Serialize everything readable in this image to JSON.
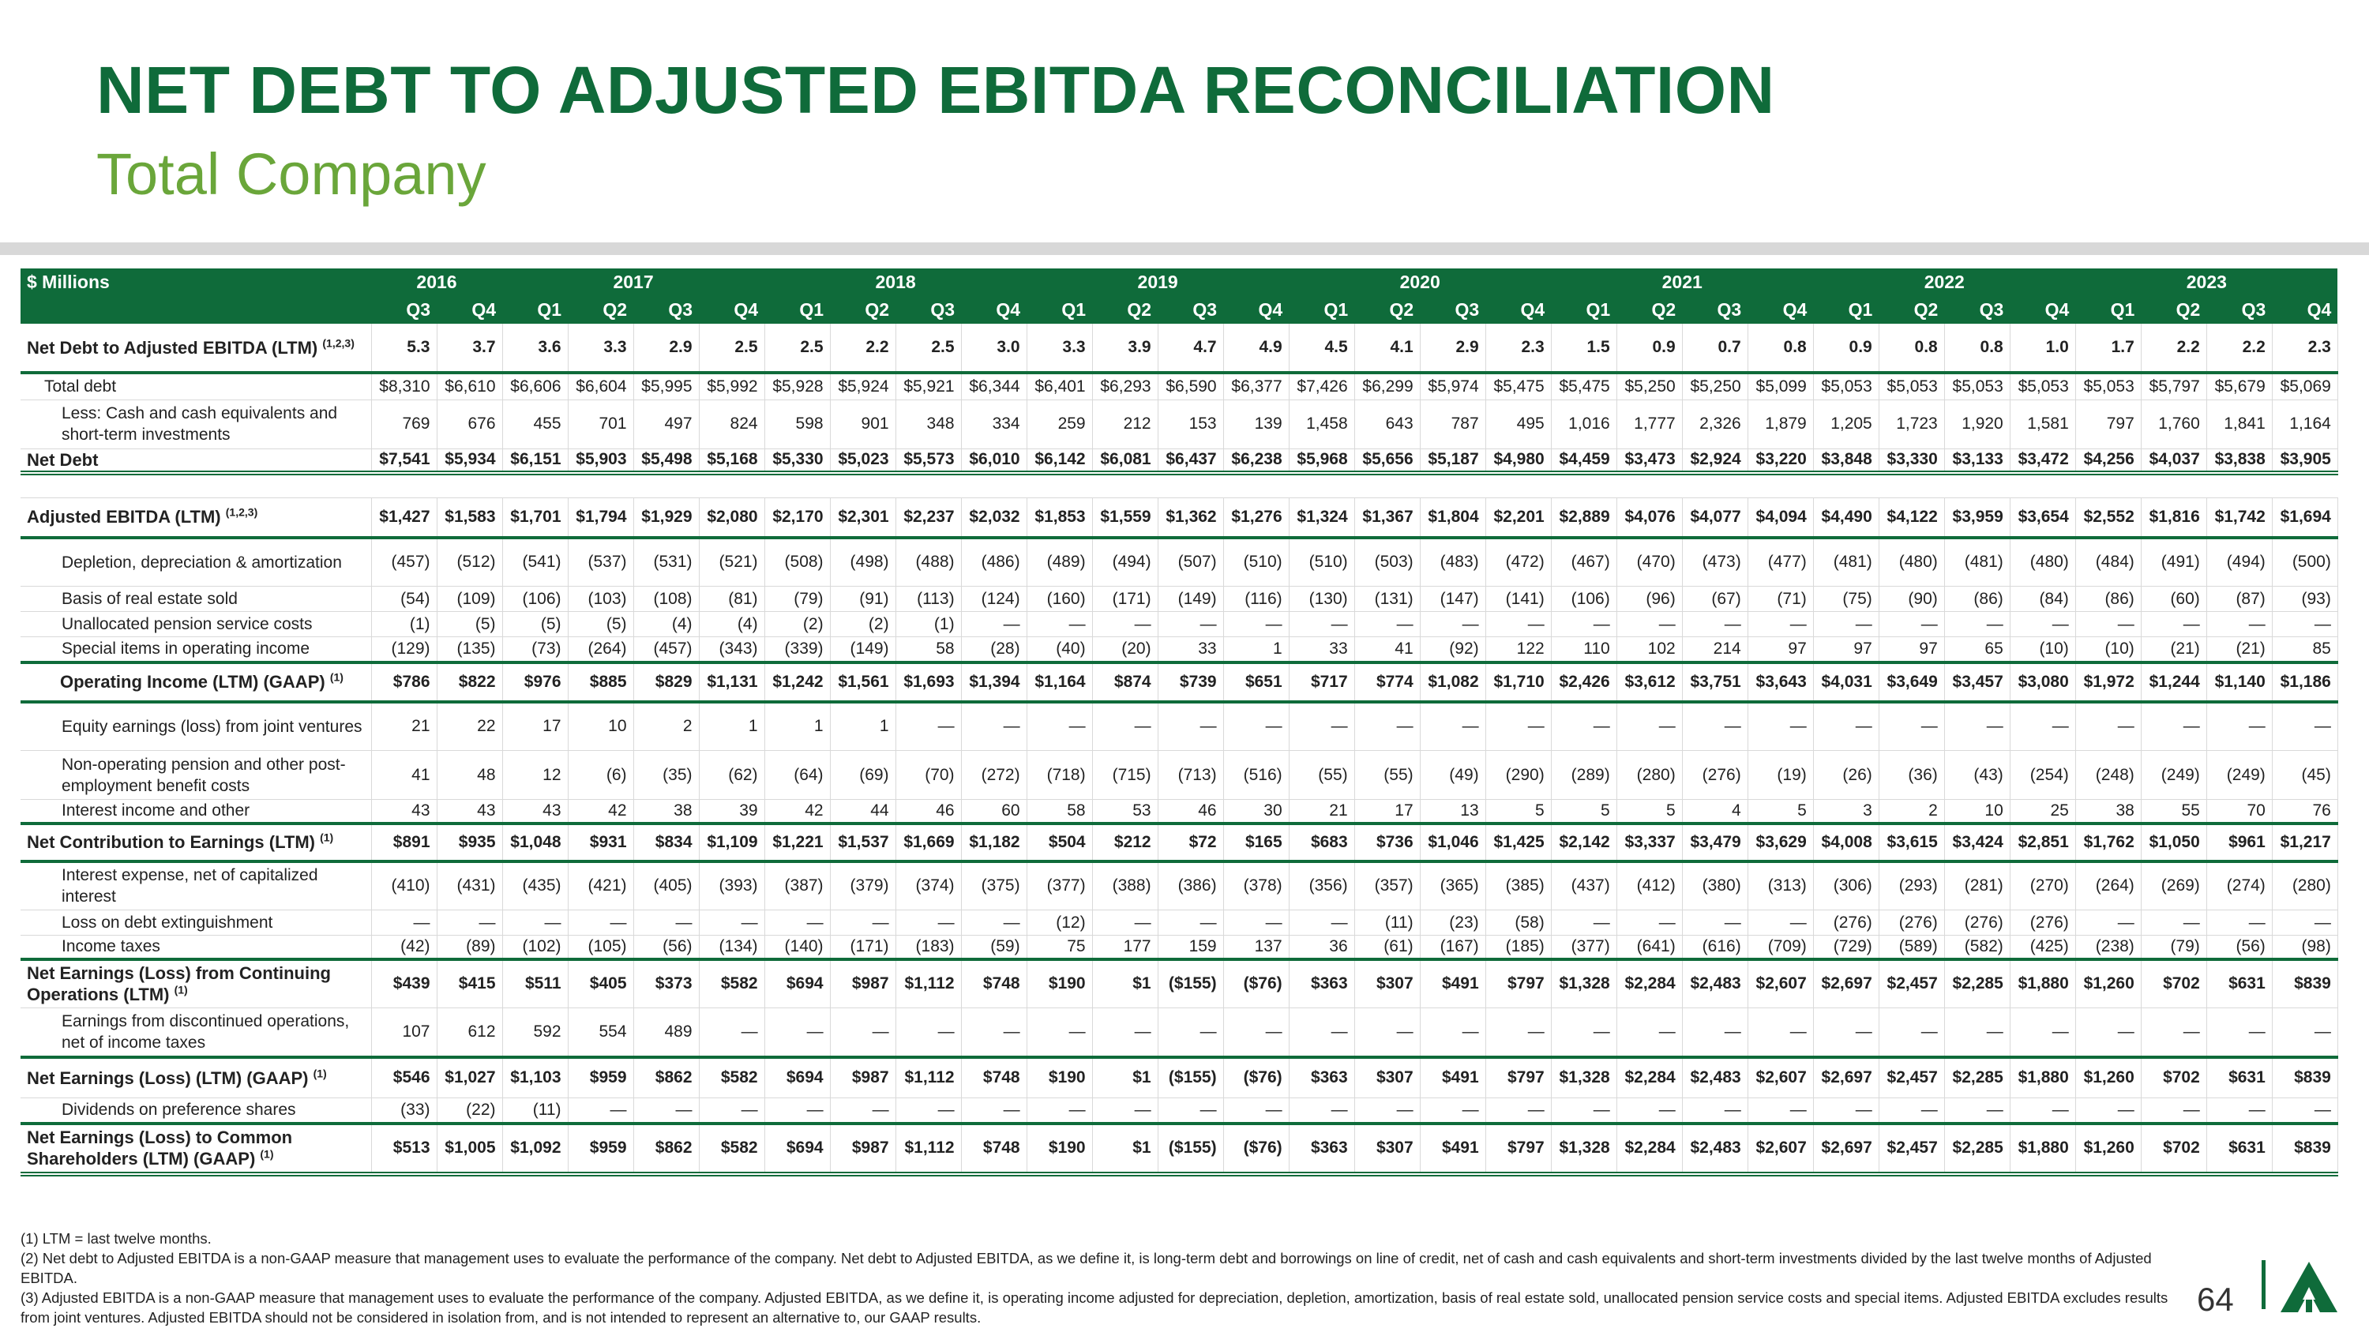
{
  "title": "NET DEBT TO ADJUSTED EBITDA RECONCILIATION",
  "subtitle": "Total Company",
  "header": {
    "corner": "$ Millions",
    "years": [
      {
        "label": "2016",
        "span": 2
      },
      {
        "label": "2017",
        "span": 4
      },
      {
        "label": "2018",
        "span": 4
      },
      {
        "label": "2019",
        "span": 4
      },
      {
        "label": "2020",
        "span": 4
      },
      {
        "label": "2021",
        "span": 4
      },
      {
        "label": "2022",
        "span": 4
      },
      {
        "label": "2023",
        "span": 4
      }
    ],
    "quarters": [
      "Q3",
      "Q4",
      "Q1",
      "Q2",
      "Q3",
      "Q4",
      "Q1",
      "Q2",
      "Q3",
      "Q4",
      "Q1",
      "Q2",
      "Q3",
      "Q4",
      "Q1",
      "Q2",
      "Q3",
      "Q4",
      "Q1",
      "Q2",
      "Q3",
      "Q4",
      "Q1",
      "Q2",
      "Q3",
      "Q4",
      "Q1",
      "Q2",
      "Q3",
      "Q4"
    ]
  },
  "rows": [
    {
      "label": "Net Debt to Adjusted EBITDA (LTM)",
      "sup": "(1,2,3)",
      "style": "bold",
      "h": 62,
      "values": [
        "5.3",
        "3.7",
        "3.6",
        "3.3",
        "2.9",
        "2.5",
        "2.5",
        "2.2",
        "2.5",
        "3.0",
        "3.3",
        "3.9",
        "4.7",
        "4.9",
        "4.5",
        "4.1",
        "2.9",
        "2.3",
        "1.5",
        "0.9",
        "0.7",
        "0.8",
        "0.9",
        "0.8",
        "0.8",
        "1.0",
        "1.7",
        "2.2",
        "2.2",
        "2.3"
      ]
    },
    {
      "label": "Total debt",
      "style": "ind1 gtop",
      "h": 34,
      "values": [
        "$8,310",
        "$6,610",
        "$6,606",
        "$6,604",
        "$5,995",
        "$5,992",
        "$5,928",
        "$5,924",
        "$5,921",
        "$6,344",
        "$6,401",
        "$6,293",
        "$6,590",
        "$6,377",
        "$7,426",
        "$6,299",
        "$5,974",
        "$5,475",
        "$5,475",
        "$5,250",
        "$5,250",
        "$5,099",
        "$5,053",
        "$5,053",
        "$5,053",
        "$5,053",
        "$5,053",
        "$5,797",
        "$5,679",
        "$5,069"
      ]
    },
    {
      "label": "Less: Cash and cash equivalents and short-term investments",
      "style": "ind2",
      "h": 62,
      "values": [
        "769",
        "676",
        "455",
        "701",
        "497",
        "824",
        "598",
        "901",
        "348",
        "334",
        "259",
        "212",
        "153",
        "139",
        "1,458",
        "643",
        "787",
        "495",
        "1,016",
        "1,777",
        "2,326",
        "1,879",
        "1,205",
        "1,723",
        "1,920",
        "1,581",
        "797",
        "1,760",
        "1,841",
        "1,164"
      ]
    },
    {
      "label": "Net Debt",
      "style": "bold dbl",
      "h": 30,
      "values": [
        "$7,541",
        "$5,934",
        "$6,151",
        "$5,903",
        "$5,498",
        "$5,168",
        "$5,330",
        "$5,023",
        "$5,573",
        "$6,010",
        "$6,142",
        "$6,081",
        "$6,437",
        "$6,238",
        "$5,968",
        "$5,656",
        "$5,187",
        "$4,980",
        "$4,459",
        "$3,473",
        "$2,924",
        "$3,220",
        "$3,848",
        "$3,330",
        "$3,133",
        "$3,472",
        "$4,256",
        "$4,037",
        "$3,838",
        "$3,905"
      ]
    },
    {
      "label": "",
      "style": "spacer",
      "h": 32,
      "values": []
    },
    {
      "label": "Adjusted EBITDA (LTM)",
      "sup": "(1,2,3)",
      "style": "bold",
      "h": 50,
      "values": [
        "$1,427",
        "$1,583",
        "$1,701",
        "$1,794",
        "$1,929",
        "$2,080",
        "$2,170",
        "$2,301",
        "$2,237",
        "$2,032",
        "$1,853",
        "$1,559",
        "$1,362",
        "$1,276",
        "$1,324",
        "$1,367",
        "$1,804",
        "$2,201",
        "$2,889",
        "$4,076",
        "$4,077",
        "$4,094",
        "$4,490",
        "$4,122",
        "$3,959",
        "$3,654",
        "$2,552",
        "$1,816",
        "$1,742",
        "$1,694"
      ]
    },
    {
      "label": "Depletion, depreciation & amortization",
      "style": "ind2 gtop",
      "h": 62,
      "values": [
        "(457)",
        "(512)",
        "(541)",
        "(537)",
        "(531)",
        "(521)",
        "(508)",
        "(498)",
        "(488)",
        "(486)",
        "(489)",
        "(494)",
        "(507)",
        "(510)",
        "(510)",
        "(503)",
        "(483)",
        "(472)",
        "(467)",
        "(470)",
        "(473)",
        "(477)",
        "(481)",
        "(480)",
        "(481)",
        "(480)",
        "(484)",
        "(491)",
        "(494)",
        "(500)"
      ]
    },
    {
      "label": "Basis of real estate sold",
      "style": "ind2",
      "h": 32,
      "values": [
        "(54)",
        "(109)",
        "(106)",
        "(103)",
        "(108)",
        "(81)",
        "(79)",
        "(91)",
        "(113)",
        "(124)",
        "(160)",
        "(171)",
        "(149)",
        "(116)",
        "(130)",
        "(131)",
        "(147)",
        "(141)",
        "(106)",
        "(96)",
        "(67)",
        "(71)",
        "(75)",
        "(90)",
        "(86)",
        "(84)",
        "(86)",
        "(60)",
        "(87)",
        "(93)"
      ]
    },
    {
      "label": "Unallocated pension service costs",
      "style": "ind2",
      "h": 32,
      "values": [
        "(1)",
        "(5)",
        "(5)",
        "(5)",
        "(4)",
        "(4)",
        "(2)",
        "(2)",
        "(1)",
        "—",
        "—",
        "—",
        "—",
        "—",
        "—",
        "—",
        "—",
        "—",
        "—",
        "—",
        "—",
        "—",
        "—",
        "—",
        "—",
        "—",
        "—",
        "—",
        "—",
        "—"
      ]
    },
    {
      "label": "Special items in operating income",
      "style": "ind2",
      "h": 32,
      "values": [
        "(129)",
        "(135)",
        "(73)",
        "(264)",
        "(457)",
        "(343)",
        "(339)",
        "(149)",
        "58",
        "(28)",
        "(40)",
        "(20)",
        "33",
        "1",
        "33",
        "41",
        "(92)",
        "122",
        "110",
        "102",
        "214",
        "97",
        "97",
        "97",
        "65",
        "(10)",
        "(10)",
        "(21)",
        "(21)",
        "85"
      ]
    },
    {
      "label": "Operating Income (LTM) (GAAP)",
      "sup": "(1)",
      "style": "bold ind3 gtop",
      "h": 50,
      "values": [
        "$786",
        "$822",
        "$976",
        "$885",
        "$829",
        "$1,131",
        "$1,242",
        "$1,561",
        "$1,693",
        "$1,394",
        "$1,164",
        "$874",
        "$739",
        "$651",
        "$717",
        "$774",
        "$1,082",
        "$1,710",
        "$2,426",
        "$3,612",
        "$3,751",
        "$3,643",
        "$4,031",
        "$3,649",
        "$3,457",
        "$3,080",
        "$1,972",
        "$1,244",
        "$1,140",
        "$1,186"
      ]
    },
    {
      "label": "Equity earnings (loss) from joint ventures",
      "style": "ind2 gtop",
      "h": 62,
      "values": [
        "21",
        "22",
        "17",
        "10",
        "2",
        "1",
        "1",
        "1",
        "—",
        "—",
        "—",
        "—",
        "—",
        "—",
        "—",
        "—",
        "—",
        "—",
        "—",
        "—",
        "—",
        "—",
        "—",
        "—",
        "—",
        "—",
        "—",
        "—",
        "—",
        "—"
      ]
    },
    {
      "label": "Non-operating pension and other post-employment benefit costs",
      "style": "ind2",
      "h": 62,
      "values": [
        "41",
        "48",
        "12",
        "(6)",
        "(35)",
        "(62)",
        "(64)",
        "(69)",
        "(70)",
        "(272)",
        "(718)",
        "(715)",
        "(713)",
        "(516)",
        "(55)",
        "(55)",
        "(49)",
        "(290)",
        "(289)",
        "(280)",
        "(276)",
        "(19)",
        "(26)",
        "(36)",
        "(43)",
        "(254)",
        "(248)",
        "(249)",
        "(249)",
        "(45)"
      ]
    },
    {
      "label": "Interest income and other",
      "style": "ind2",
      "h": 30,
      "values": [
        "43",
        "43",
        "43",
        "42",
        "38",
        "39",
        "42",
        "44",
        "46",
        "60",
        "58",
        "53",
        "46",
        "30",
        "21",
        "17",
        "13",
        "5",
        "5",
        "5",
        "4",
        "5",
        "3",
        "2",
        "10",
        "25",
        "38",
        "55",
        "70",
        "76"
      ]
    },
    {
      "label": "Net Contribution to Earnings (LTM)",
      "sup": "(1)",
      "style": "bold gtop",
      "h": 48,
      "values": [
        "$891",
        "$935",
        "$1,048",
        "$931",
        "$834",
        "$1,109",
        "$1,221",
        "$1,537",
        "$1,669",
        "$1,182",
        "$504",
        "$212",
        "$72",
        "$165",
        "$683",
        "$736",
        "$1,046",
        "$1,425",
        "$2,142",
        "$3,337",
        "$3,479",
        "$3,629",
        "$4,008",
        "$3,615",
        "$3,424",
        "$2,851",
        "$1,762",
        "$1,050",
        "$961",
        "$1,217"
      ]
    },
    {
      "label": "Interest expense, net of capitalized interest",
      "style": "ind2 gtop",
      "h": 62,
      "values": [
        "(410)",
        "(431)",
        "(435)",
        "(421)",
        "(405)",
        "(393)",
        "(387)",
        "(379)",
        "(374)",
        "(375)",
        "(377)",
        "(388)",
        "(386)",
        "(378)",
        "(356)",
        "(357)",
        "(365)",
        "(385)",
        "(437)",
        "(412)",
        "(380)",
        "(313)",
        "(306)",
        "(293)",
        "(281)",
        "(270)",
        "(264)",
        "(269)",
        "(274)",
        "(280)"
      ]
    },
    {
      "label": "Loss on debt extinguishment",
      "style": "ind2",
      "h": 32,
      "values": [
        "—",
        "—",
        "—",
        "—",
        "—",
        "—",
        "—",
        "—",
        "—",
        "—",
        "(12)",
        "—",
        "—",
        "—",
        "—",
        "(11)",
        "(23)",
        "(58)",
        "—",
        "—",
        "—",
        "—",
        "(276)",
        "(276)",
        "(276)",
        "(276)",
        "—",
        "—",
        "—",
        "—"
      ]
    },
    {
      "label": "Income taxes",
      "style": "ind2",
      "h": 30,
      "values": [
        "(42)",
        "(89)",
        "(102)",
        "(105)",
        "(56)",
        "(134)",
        "(140)",
        "(171)",
        "(183)",
        "(59)",
        "75",
        "177",
        "159",
        "137",
        "36",
        "(61)",
        "(167)",
        "(185)",
        "(377)",
        "(641)",
        "(616)",
        "(709)",
        "(729)",
        "(589)",
        "(582)",
        "(425)",
        "(238)",
        "(79)",
        "(56)",
        "(98)"
      ]
    },
    {
      "label": "Net Earnings (Loss) from Continuing Operations (LTM)",
      "sup": "(1)",
      "style": "bold gtop",
      "h": 62,
      "values": [
        "$439",
        "$415",
        "$511",
        "$405",
        "$373",
        "$582",
        "$694",
        "$987",
        "$1,112",
        "$748",
        "$190",
        "$1",
        "($155)",
        "($76)",
        "$363",
        "$307",
        "$491",
        "$797",
        "$1,328",
        "$2,284",
        "$2,483",
        "$2,607",
        "$2,697",
        "$2,457",
        "$2,285",
        "$1,880",
        "$1,260",
        "$702",
        "$631",
        "$839"
      ]
    },
    {
      "label": "Earnings from discontinued operations, net of income taxes",
      "style": "ind2",
      "h": 62,
      "values": [
        "107",
        "612",
        "592",
        "554",
        "489",
        "—",
        "—",
        "—",
        "—",
        "—",
        "—",
        "—",
        "—",
        "—",
        "—",
        "—",
        "—",
        "—",
        "—",
        "—",
        "—",
        "—",
        "—",
        "—",
        "—",
        "—",
        "—",
        "—",
        "—",
        "—"
      ]
    },
    {
      "label": "Net Earnings (Loss) (LTM) (GAAP)",
      "sup": "(1)",
      "style": "bold gtop",
      "h": 52,
      "values": [
        "$546",
        "$1,027",
        "$1,103",
        "$959",
        "$862",
        "$582",
        "$694",
        "$987",
        "$1,112",
        "$748",
        "$190",
        "$1",
        "($155)",
        "($76)",
        "$363",
        "$307",
        "$491",
        "$797",
        "$1,328",
        "$2,284",
        "$2,483",
        "$2,607",
        "$2,697",
        "$2,457",
        "$2,285",
        "$1,880",
        "$1,260",
        "$702",
        "$631",
        "$839"
      ]
    },
    {
      "label": "Dividends on preference shares",
      "style": "ind2",
      "h": 32,
      "values": [
        "(33)",
        "(22)",
        "(11)",
        "—",
        "—",
        "—",
        "—",
        "—",
        "—",
        "—",
        "—",
        "—",
        "—",
        "—",
        "—",
        "—",
        "—",
        "—",
        "—",
        "—",
        "—",
        "—",
        "—",
        "—",
        "—",
        "—",
        "—",
        "—",
        "—",
        "—"
      ]
    },
    {
      "label": "Net Earnings (Loss) to Common Shareholders (LTM) (GAAP)",
      "sup": "(1)",
      "style": "bold gtop dbl",
      "h": 64,
      "values": [
        "$513",
        "$1,005",
        "$1,092",
        "$959",
        "$862",
        "$582",
        "$694",
        "$987",
        "$1,112",
        "$748",
        "$190",
        "$1",
        "($155)",
        "($76)",
        "$363",
        "$307",
        "$491",
        "$797",
        "$1,328",
        "$2,284",
        "$2,483",
        "$2,607",
        "$2,697",
        "$2,457",
        "$2,285",
        "$1,880",
        "$1,260",
        "$702",
        "$631",
        "$839"
      ]
    }
  ],
  "footnotes": [
    "(1) LTM = last twelve months.",
    "(2) Net debt to Adjusted EBITDA is a non-GAAP measure that management uses to evaluate the performance of the company. Net debt to Adjusted EBITDA, as we define it, is long-term debt and borrowings on line of credit, net of cash and cash equivalents and short-term investments divided by the last twelve months of Adjusted EBITDA.",
    "(3) Adjusted EBITDA is a non-GAAP measure that management uses to evaluate the performance of the company. Adjusted EBITDA, as we define it, is operating income adjusted for depreciation, depletion, amortization, basis of real estate sold, unallocated pension service costs and special items. Adjusted EBITDA excludes results from joint ventures. Adjusted EBITDA should not be considered in isolation from, and is not intended to represent an alternative to, our GAAP results."
  ],
  "page_number": "64",
  "logo_icon": "weyerhaeuser-tree-logo-icon",
  "colors": {
    "brand_green": "#0f6b3a",
    "light_green": "#6aa63a"
  }
}
